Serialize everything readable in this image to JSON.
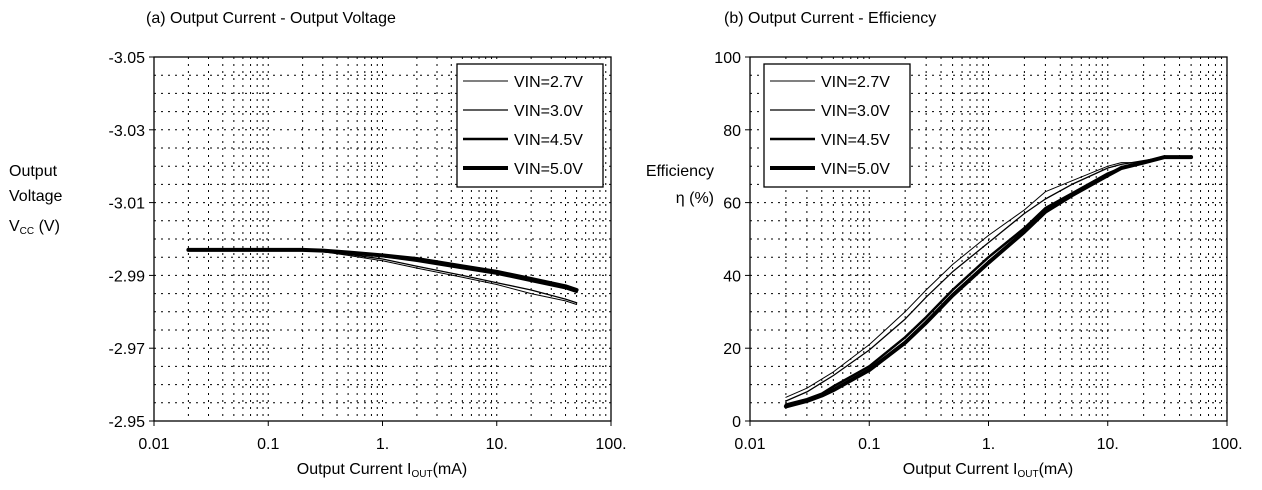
{
  "chart_data": [
    {
      "type": "line",
      "title": "(a)  Output Current - Output Voltage",
      "ylabel_lines": [
        "Output",
        "Voltage",
        "V",
        "CC",
        " (V)"
      ],
      "xlabel_main": "Output Current I",
      "xlabel_sub": "OUT",
      "xlabel_unit": "(mA)",
      "x_scale": "log",
      "xlim": [
        0.01,
        100
      ],
      "ylim": [
        -2.95,
        -3.05
      ],
      "y_inverted": true,
      "x_ticks": [
        "0.01",
        "0.1",
        "1.",
        "10.",
        "100."
      ],
      "y_ticks": [
        "-2.95",
        "-2.97",
        "-2.99",
        "-3.01",
        "-3.03",
        "-3.05"
      ],
      "grid": "dotted",
      "legend_position": "top-right",
      "series": [
        {
          "name": "VIN=2.7V",
          "width": 1,
          "points": [
            [
              0.02,
              -2.997
            ],
            [
              0.05,
              -2.997
            ],
            [
              0.1,
              -2.997
            ],
            [
              0.2,
              -2.997
            ],
            [
              0.3,
              -2.9965
            ],
            [
              0.5,
              -2.9955
            ],
            [
              1,
              -2.994
            ],
            [
              2,
              -2.992
            ],
            [
              5,
              -2.9895
            ],
            [
              10,
              -2.9875
            ],
            [
              20,
              -2.985
            ],
            [
              40,
              -2.983
            ],
            [
              50,
              -2.982
            ]
          ]
        },
        {
          "name": "VIN=3.0V",
          "width": 1.3,
          "points": [
            [
              0.02,
              -2.997
            ],
            [
              0.05,
              -2.997
            ],
            [
              0.1,
              -2.997
            ],
            [
              0.2,
              -2.997
            ],
            [
              0.3,
              -2.9965
            ],
            [
              0.5,
              -2.9958
            ],
            [
              1,
              -2.9945
            ],
            [
              2,
              -2.9925
            ],
            [
              5,
              -2.99
            ],
            [
              10,
              -2.988
            ],
            [
              20,
              -2.986
            ],
            [
              40,
              -2.9835
            ],
            [
              50,
              -2.9825
            ]
          ]
        },
        {
          "name": "VIN=4.5V",
          "width": 2.5,
          "points": [
            [
              0.02,
              -2.997
            ],
            [
              0.05,
              -2.997
            ],
            [
              0.1,
              -2.997
            ],
            [
              0.2,
              -2.997
            ],
            [
              0.3,
              -2.9968
            ],
            [
              0.5,
              -2.9962
            ],
            [
              1,
              -2.9953
            ],
            [
              2,
              -2.994
            ],
            [
              5,
              -2.992
            ],
            [
              10,
              -2.9905
            ],
            [
              20,
              -2.9885
            ],
            [
              40,
              -2.9865
            ],
            [
              50,
              -2.9855
            ]
          ]
        },
        {
          "name": "VIN=5.0V",
          "width": 4,
          "points": [
            [
              0.02,
              -2.997
            ],
            [
              0.05,
              -2.997
            ],
            [
              0.1,
              -2.997
            ],
            [
              0.2,
              -2.997
            ],
            [
              0.3,
              -2.9968
            ],
            [
              0.5,
              -2.9963
            ],
            [
              1,
              -2.9955
            ],
            [
              2,
              -2.9945
            ],
            [
              5,
              -2.9925
            ],
            [
              10,
              -2.991
            ],
            [
              20,
              -2.989
            ],
            [
              40,
              -2.987
            ],
            [
              50,
              -2.986
            ]
          ]
        }
      ]
    },
    {
      "type": "line",
      "title": "(b)  Output Current - Efficiency",
      "ylabel_lines": [
        "Efficiency",
        "η (%)"
      ],
      "xlabel_main": "Output Current I",
      "xlabel_sub": "OUT",
      "xlabel_unit": "(mA)",
      "x_scale": "log",
      "xlim": [
        0.01,
        100
      ],
      "ylim": [
        0,
        100
      ],
      "y_inverted": false,
      "x_ticks": [
        "0.01",
        "0.1",
        "1.",
        "10.",
        "100."
      ],
      "y_ticks": [
        "0",
        "20",
        "40",
        "60",
        "80",
        "100"
      ],
      "grid": "dotted",
      "legend_position": "top-left",
      "series": [
        {
          "name": "VIN=2.7V",
          "width": 1,
          "points": [
            [
              0.02,
              6.5
            ],
            [
              0.03,
              9
            ],
            [
              0.05,
              13.5
            ],
            [
              0.1,
              21
            ],
            [
              0.2,
              30
            ],
            [
              0.3,
              36
            ],
            [
              0.5,
              43
            ],
            [
              1,
              51
            ],
            [
              2,
              58
            ],
            [
              3,
              63
            ],
            [
              5,
              66
            ],
            [
              10,
              70
            ],
            [
              13,
              71
            ],
            [
              20,
              71
            ],
            [
              30,
              72.5
            ],
            [
              50,
              72.5
            ]
          ]
        },
        {
          "name": "VIN=3.0V",
          "width": 1.3,
          "points": [
            [
              0.02,
              5.5
            ],
            [
              0.03,
              8
            ],
            [
              0.05,
              12.5
            ],
            [
              0.1,
              19.5
            ],
            [
              0.2,
              28
            ],
            [
              0.3,
              34
            ],
            [
              0.5,
              41
            ],
            [
              1,
              49
            ],
            [
              2,
              57
            ],
            [
              3,
              61
            ],
            [
              5,
              65
            ],
            [
              10,
              69.5
            ],
            [
              13,
              70.5
            ],
            [
              20,
              71.5
            ],
            [
              30,
              72.5
            ],
            [
              50,
              72.5
            ]
          ]
        },
        {
          "name": "VIN=4.5V",
          "width": 2.5,
          "points": [
            [
              0.02,
              4.5
            ],
            [
              0.03,
              6
            ],
            [
              0.04,
              7.5
            ],
            [
              0.05,
              9.5
            ],
            [
              0.1,
              15
            ],
            [
              0.2,
              23
            ],
            [
              0.3,
              28.5
            ],
            [
              0.5,
              36
            ],
            [
              1,
              45
            ],
            [
              2,
              53
            ],
            [
              3,
              58.5
            ],
            [
              5,
              62.5
            ],
            [
              10,
              68
            ],
            [
              13,
              69.5
            ],
            [
              20,
              71
            ],
            [
              30,
              72.5
            ],
            [
              50,
              72.5
            ]
          ]
        },
        {
          "name": "VIN=5.0V",
          "width": 4,
          "points": [
            [
              0.02,
              4
            ],
            [
              0.03,
              5.5
            ],
            [
              0.04,
              7
            ],
            [
              0.05,
              8.5
            ],
            [
              0.1,
              14
            ],
            [
              0.2,
              21.5
            ],
            [
              0.3,
              27
            ],
            [
              0.5,
              34.5
            ],
            [
              1,
              43.5
            ],
            [
              2,
              52
            ],
            [
              3,
              57.5
            ],
            [
              5,
              62
            ],
            [
              10,
              67.5
            ],
            [
              13,
              69.5
            ],
            [
              20,
              71
            ],
            [
              30,
              72.5
            ],
            [
              50,
              72.5
            ]
          ]
        }
      ]
    }
  ]
}
